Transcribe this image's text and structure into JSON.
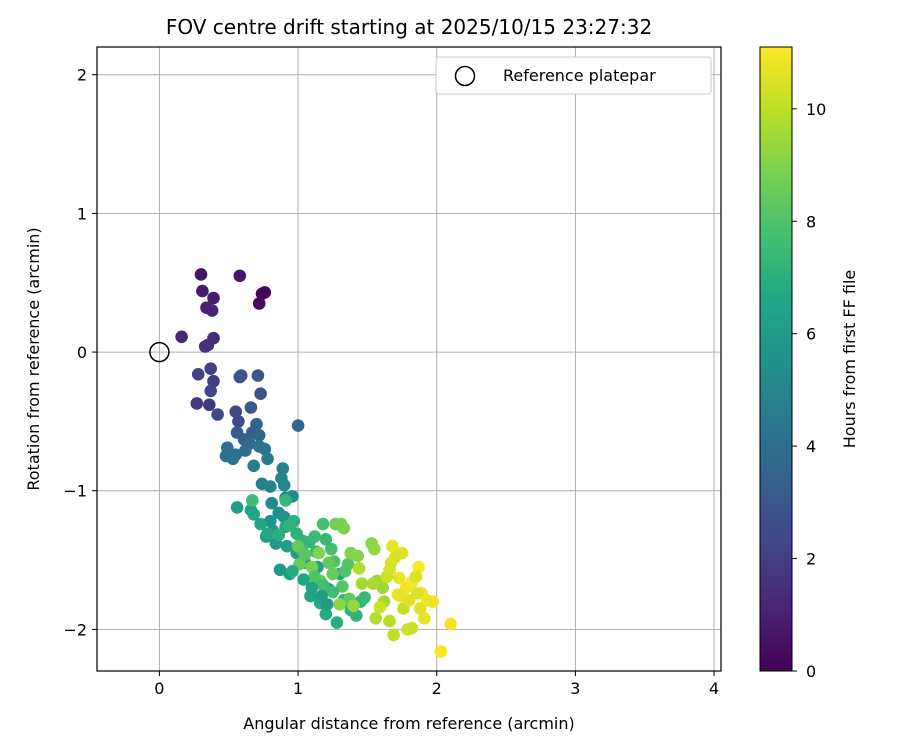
{
  "chart_data": {
    "type": "scatter",
    "title": "FOV centre drift starting at 2025/10/15 23:27:32",
    "xlabel": "Angular distance from reference (arcmin)",
    "ylabel": "Rotation from reference (arcmin)",
    "xlim": [
      -0.45,
      4.05
    ],
    "ylim": [
      -2.3,
      2.2
    ],
    "xticks": [
      0,
      1,
      2,
      3,
      4
    ],
    "xtick_labels": [
      "0",
      "1",
      "2",
      "3",
      "4"
    ],
    "yticks": [
      -2,
      -1,
      0,
      1,
      2
    ],
    "ytick_labels": [
      "−2",
      "−1",
      "0",
      "1",
      "2"
    ],
    "grid": true,
    "legend": {
      "position": "top-right",
      "label": "Reference platepar"
    },
    "reference_point": {
      "x": 0,
      "y": 0
    },
    "colorbar": {
      "label": "Hours from first FF file",
      "range": [
        0,
        11.1
      ],
      "ticks": [
        0,
        2,
        4,
        6,
        8,
        10
      ],
      "tick_labels": [
        "0",
        "2",
        "4",
        "6",
        "8",
        "10"
      ],
      "colormap": "viridis"
    },
    "points": [
      [
        0.74,
        0.42,
        0.1
      ],
      [
        0.76,
        0.43,
        0.2
      ],
      [
        0.72,
        0.35,
        0.3
      ],
      [
        0.3,
        0.56,
        0.6
      ],
      [
        0.58,
        0.55,
        0.7
      ],
      [
        0.31,
        0.44,
        0.8
      ],
      [
        0.39,
        0.39,
        0.9
      ],
      [
        0.34,
        0.32,
        1.0
      ],
      [
        0.38,
        0.3,
        1.1
      ],
      [
        0.16,
        0.11,
        1.3
      ],
      [
        0.39,
        0.1,
        1.4
      ],
      [
        0.35,
        0.05,
        1.5
      ],
      [
        0.33,
        0.04,
        1.6
      ],
      [
        0.27,
        -0.37,
        1.8
      ],
      [
        0.36,
        -0.38,
        1.9
      ],
      [
        0.39,
        -0.21,
        2.0
      ],
      [
        0.37,
        -0.12,
        2.1
      ],
      [
        0.28,
        -0.16,
        2.2
      ],
      [
        0.37,
        -0.28,
        2.3
      ],
      [
        0.42,
        -0.45,
        2.4
      ],
      [
        0.55,
        -0.43,
        2.5
      ],
      [
        0.57,
        -0.5,
        2.6
      ],
      [
        0.58,
        -0.18,
        2.7
      ],
      [
        0.59,
        -0.17,
        2.8
      ],
      [
        0.73,
        -0.3,
        2.9
      ],
      [
        0.71,
        -0.17,
        3.0
      ],
      [
        0.66,
        -0.4,
        3.1
      ],
      [
        0.56,
        -0.58,
        3.2
      ],
      [
        0.61,
        -0.63,
        3.3
      ],
      [
        0.67,
        -0.58,
        3.4
      ],
      [
        0.7,
        -0.52,
        3.5
      ],
      [
        0.72,
        -0.6,
        3.6
      ],
      [
        1.0,
        -0.53,
        3.7
      ],
      [
        0.65,
        -0.66,
        3.8
      ],
      [
        0.62,
        -0.71,
        3.9
      ],
      [
        0.55,
        -0.74,
        4.0
      ],
      [
        0.49,
        -0.69,
        4.0
      ],
      [
        0.48,
        -0.75,
        4.1
      ],
      [
        0.53,
        -0.77,
        4.2
      ],
      [
        0.72,
        -0.68,
        4.3
      ],
      [
        0.76,
        -0.7,
        4.4
      ],
      [
        0.78,
        -0.77,
        4.5
      ],
      [
        0.68,
        -0.82,
        4.6
      ],
      [
        0.89,
        -0.84,
        4.7
      ],
      [
        0.74,
        -0.95,
        4.8
      ],
      [
        0.8,
        -0.97,
        4.9
      ],
      [
        0.88,
        -0.91,
        5.0
      ],
      [
        0.9,
        -0.96,
        5.1
      ],
      [
        0.81,
        -1.09,
        5.2
      ],
      [
        0.91,
        -1.05,
        5.3
      ],
      [
        0.96,
        -1.04,
        5.4
      ],
      [
        0.86,
        -1.16,
        5.5
      ],
      [
        0.9,
        -1.19,
        5.6
      ],
      [
        0.8,
        -1.22,
        5.7
      ],
      [
        0.82,
        -1.29,
        5.8
      ],
      [
        0.84,
        -1.38,
        5.9
      ],
      [
        0.77,
        -1.33,
        6.0
      ],
      [
        0.92,
        -1.4,
        6.1
      ],
      [
        0.99,
        -1.45,
        6.2
      ],
      [
        0.87,
        -1.57,
        5.9
      ],
      [
        0.94,
        -1.6,
        6.0
      ],
      [
        1.05,
        -1.52,
        6.2
      ],
      [
        1.14,
        -1.55,
        6.3
      ],
      [
        1.15,
        -1.65,
        6.4
      ],
      [
        1.22,
        -1.71,
        6.4
      ],
      [
        1.3,
        -1.6,
        6.5
      ],
      [
        1.09,
        -1.76,
        6.6
      ],
      [
        1.16,
        -1.81,
        6.7
      ],
      [
        1.2,
        -1.89,
        6.8
      ],
      [
        1.28,
        -1.95,
        6.9
      ],
      [
        1.33,
        -1.79,
        7.0
      ],
      [
        1.38,
        -1.86,
        7.1
      ],
      [
        1.42,
        -1.9,
        7.2
      ],
      [
        1.45,
        -1.8,
        7.3
      ],
      [
        1.48,
        -1.77,
        7.4
      ],
      [
        0.56,
        -1.12,
        6.2
      ],
      [
        0.66,
        -1.14,
        6.4
      ],
      [
        0.68,
        -1.17,
        6.5
      ],
      [
        0.73,
        -1.24,
        6.6
      ],
      [
        0.78,
        -1.31,
        6.7
      ],
      [
        0.91,
        -1.26,
        6.8
      ],
      [
        0.97,
        -1.22,
        7.0
      ],
      [
        0.99,
        -1.31,
        7.1
      ],
      [
        1.03,
        -1.36,
        7.2
      ],
      [
        1.08,
        -1.37,
        7.3
      ],
      [
        1.12,
        -1.33,
        7.5
      ],
      [
        1.13,
        -1.44,
        7.4
      ],
      [
        1.03,
        -1.43,
        7.6
      ],
      [
        1.18,
        -1.24,
        7.7
      ],
      [
        1.24,
        -1.42,
        7.8
      ],
      [
        1.26,
        -1.51,
        7.9
      ],
      [
        1.34,
        -1.58,
        8.0
      ],
      [
        1.36,
        -1.53,
        8.1
      ],
      [
        1.32,
        -1.69,
        8.2
      ],
      [
        1.37,
        -1.78,
        8.3
      ],
      [
        0.91,
        -1.07,
        7.4
      ],
      [
        0.67,
        -1.07,
        7.6
      ],
      [
        1.22,
        -1.52,
        8.4
      ],
      [
        1.25,
        -1.6,
        8.5
      ],
      [
        1.16,
        -1.65,
        8.6
      ],
      [
        1.27,
        -1.24,
        8.7
      ],
      [
        1.31,
        -1.24,
        8.8
      ],
      [
        1.33,
        -1.27,
        8.9
      ],
      [
        1.38,
        -1.45,
        9.0
      ],
      [
        1.43,
        -1.47,
        9.1
      ],
      [
        1.53,
        -1.38,
        9.2
      ],
      [
        1.55,
        -1.42,
        9.3
      ],
      [
        1.57,
        -1.65,
        9.4
      ],
      [
        1.61,
        -1.7,
        9.5
      ],
      [
        1.62,
        -1.8,
        9.6
      ],
      [
        1.54,
        -1.67,
        9.7
      ],
      [
        1.56,
        -1.92,
        9.8
      ],
      [
        1.66,
        -1.94,
        9.9
      ],
      [
        1.69,
        -2.04,
        10.0
      ],
      [
        1.76,
        -1.85,
        10.1
      ],
      [
        1.79,
        -2.0,
        10.2
      ],
      [
        1.82,
        -1.99,
        10.3
      ],
      [
        1.67,
        -1.52,
        10.4
      ],
      [
        1.7,
        -1.48,
        10.5
      ],
      [
        1.75,
        -1.45,
        10.6
      ],
      [
        1.68,
        -1.4,
        10.7
      ],
      [
        1.73,
        -1.63,
        10.8
      ],
      [
        1.78,
        -1.7,
        10.9
      ],
      [
        1.82,
        -1.66,
        11.0
      ],
      [
        1.87,
        -1.55,
        11.1
      ],
      [
        1.89,
        -1.74,
        11.0
      ],
      [
        1.93,
        -1.79,
        10.9
      ],
      [
        1.97,
        -1.8,
        10.8
      ],
      [
        1.91,
        -1.92,
        10.7
      ],
      [
        1.88,
        -1.85,
        10.6
      ],
      [
        1.85,
        -1.62,
        10.5
      ],
      [
        2.03,
        -2.16,
        11.0
      ],
      [
        2.1,
        -1.96,
        10.9
      ],
      [
        1.72,
        -1.75,
        10.8
      ],
      [
        1.74,
        -1.76,
        10.7
      ],
      [
        1.8,
        -1.79,
        10.6
      ],
      [
        1.86,
        -1.74,
        10.5
      ],
      [
        1.66,
        -1.57,
        10.4
      ],
      [
        1.64,
        -1.62,
        10.3
      ],
      [
        1.59,
        -1.84,
        10.2
      ],
      [
        1.44,
        -1.56,
        9.8
      ],
      [
        1.46,
        -1.67,
        9.6
      ],
      [
        1.4,
        -1.83,
        9.4
      ],
      [
        1.3,
        -1.82,
        9.2
      ],
      [
        1.15,
        -1.45,
        9.0
      ],
      [
        1.1,
        -1.55,
        8.8
      ],
      [
        1.01,
        -1.53,
        8.6
      ],
      [
        1.0,
        -1.4,
        8.4
      ],
      [
        1.05,
        -1.46,
        8.2
      ],
      [
        1.12,
        -1.62,
        8.0
      ],
      [
        1.18,
        -1.68,
        7.8
      ],
      [
        1.25,
        -1.73,
        7.6
      ],
      [
        1.2,
        -1.35,
        7.4
      ],
      [
        0.94,
        -1.25,
        7.2
      ],
      [
        0.86,
        -1.32,
        7.0
      ],
      [
        0.96,
        -1.58,
        6.8
      ],
      [
        1.04,
        -1.64,
        6.6
      ],
      [
        1.1,
        -1.7,
        6.4
      ],
      [
        1.17,
        -1.76,
        6.2
      ],
      [
        1.21,
        -1.82,
        6.0
      ]
    ]
  }
}
